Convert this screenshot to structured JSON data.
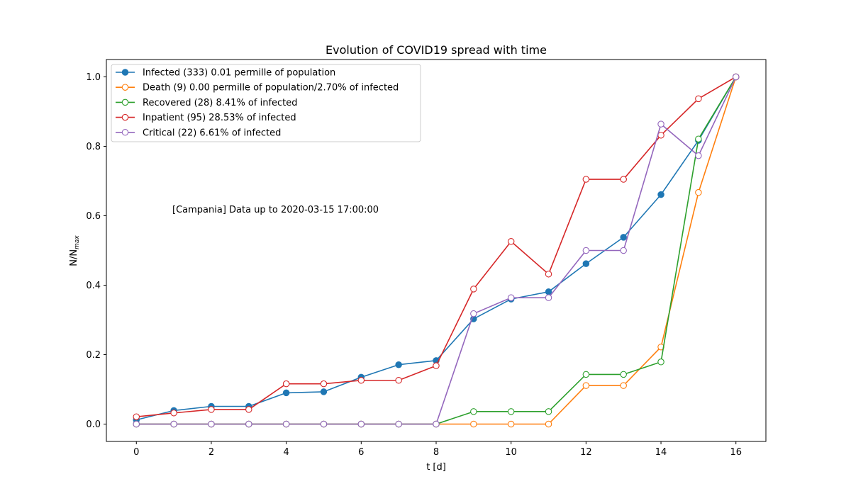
{
  "chart_data": {
    "type": "line",
    "title": "Evolution of COVID19 spread with time",
    "xlabel": "t [d]",
    "ylabel": "N/N",
    "ylabel_sub": "max",
    "xlim": [
      -0.8,
      16.8
    ],
    "ylim": [
      -0.05,
      1.05
    ],
    "xticks": [
      0,
      2,
      4,
      6,
      8,
      10,
      12,
      14,
      16
    ],
    "yticks": [
      0.0,
      0.2,
      0.4,
      0.6,
      0.8,
      1.0
    ],
    "ytick_labels": [
      "0.0",
      "0.2",
      "0.4",
      "0.6",
      "0.8",
      "1.0"
    ],
    "grid": false,
    "legend_position": "top-left",
    "annotation": "[Campania] Data up to 2020-03-15 17:00:00",
    "x": [
      0,
      1,
      2,
      3,
      4,
      5,
      6,
      7,
      8,
      9,
      10,
      11,
      12,
      13,
      14,
      15,
      16
    ],
    "series": [
      {
        "name": "Infected (333) 0.01 permille of population",
        "color": "#1f77b4",
        "marker": "filled",
        "values": [
          0.012,
          0.039,
          0.051,
          0.051,
          0.09,
          0.093,
          0.135,
          0.171,
          0.183,
          0.303,
          0.36,
          0.381,
          0.462,
          0.538,
          0.661,
          0.817,
          1.0
        ]
      },
      {
        "name": "Death (9) 0.00 permille of population/2.70% of infected",
        "color": "#ff7f0e",
        "marker": "hollow",
        "values": [
          0,
          0,
          0,
          0,
          0,
          0,
          0,
          0,
          0,
          0,
          0,
          0,
          0.111,
          0.111,
          0.222,
          0.667,
          1.0
        ]
      },
      {
        "name": "Recovered (28) 8.41% of infected",
        "color": "#2ca02c",
        "marker": "hollow",
        "values": [
          0,
          0,
          0,
          0,
          0,
          0,
          0,
          0,
          0,
          0.036,
          0.036,
          0.036,
          0.143,
          0.143,
          0.179,
          0.821,
          1.0
        ]
      },
      {
        "name": "Inpatient (95) 28.53% of infected",
        "color": "#d62728",
        "marker": "hollow",
        "values": [
          0.021,
          0.032,
          0.042,
          0.042,
          0.116,
          0.116,
          0.126,
          0.126,
          0.168,
          0.389,
          0.526,
          0.432,
          0.705,
          0.705,
          0.832,
          0.937,
          1.0
        ]
      },
      {
        "name": "Critical (22) 6.61% of infected",
        "color": "#9467bd",
        "marker": "hollow",
        "values": [
          0,
          0,
          0,
          0,
          0,
          0,
          0,
          0,
          0,
          0.318,
          0.364,
          0.364,
          0.5,
          0.5,
          0.864,
          0.773,
          1.0
        ]
      }
    ]
  }
}
